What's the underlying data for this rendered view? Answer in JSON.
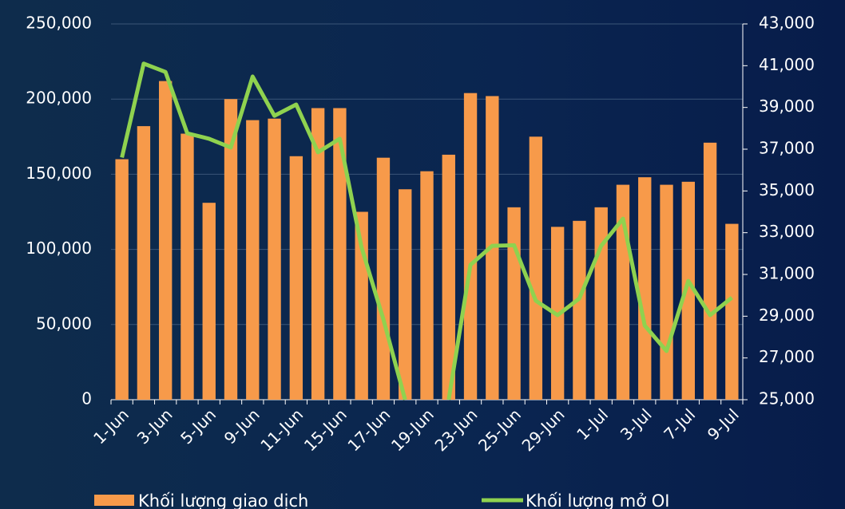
{
  "chart_data": {
    "type": "bar_line",
    "categories": [
      "1-Jun",
      null,
      "3-Jun",
      null,
      "5-Jun",
      null,
      "9-Jun",
      null,
      "11-Jun",
      null,
      "15-Jun",
      null,
      "17-Jun",
      null,
      "19-Jun",
      null,
      "23-Jun",
      null,
      "25-Jun",
      null,
      "29-Jun",
      null,
      "1-Jul",
      null,
      "3-Jul",
      null,
      "7-Jul",
      null,
      "9-Jul"
    ],
    "series": [
      {
        "name": "Khối lượng giao dịch",
        "type": "bar",
        "color": "#f79a4a",
        "axis": "y",
        "values": [
          160000,
          182000,
          212000,
          177000,
          131000,
          200000,
          186000,
          187000,
          162000,
          194000,
          194000,
          125000,
          161000,
          140000,
          152000,
          163000,
          204000,
          202000,
          128000,
          175000,
          115000,
          119000,
          128000,
          143000,
          148000,
          143000,
          145000,
          171000,
          117000
        ]
      },
      {
        "name": "Khối lượng mở OI",
        "type": "line",
        "color": "#8fd24f",
        "axis": "y2",
        "values": [
          36600,
          41100,
          40700,
          37760,
          37500,
          37080,
          40480,
          38600,
          39140,
          36850,
          37500,
          32300,
          28860,
          25000,
          null,
          25000,
          31460,
          32370,
          32400,
          29740,
          29050,
          29850,
          32370,
          33670,
          28550,
          27330,
          30690,
          29050,
          29890
        ]
      }
    ],
    "ylim": [
      0,
      250000
    ],
    "yticks": [
      0,
      {
        "value": 50000,
        "label": "50,000"
      },
      {
        "value": 100000,
        "label": "100,000"
      },
      {
        "value": 150000,
        "label": "150,000"
      },
      {
        "value": 200000,
        "label": "200,000"
      },
      {
        "value": 250000,
        "label": "250,000"
      }
    ],
    "y2lim": [
      25000,
      43000
    ],
    "y2ticks": [
      {
        "value": 25000,
        "label": "25,000"
      },
      {
        "value": 27000,
        "label": "27,000"
      },
      {
        "value": 29000,
        "label": "29,000"
      },
      {
        "value": 31000,
        "label": "31,000"
      },
      {
        "value": 33000,
        "label": "33,000"
      },
      {
        "value": 35000,
        "label": "35,000"
      },
      {
        "value": 37000,
        "label": "37,000"
      },
      {
        "value": 39000,
        "label": "39,000"
      },
      {
        "value": 41000,
        "label": "41,000"
      },
      {
        "value": 43000,
        "label": "43,000"
      }
    ],
    "grid": true
  }
}
